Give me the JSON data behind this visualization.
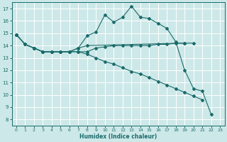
{
  "xlabel": "Humidex (Indice chaleur)",
  "background_color": "#cde8e8",
  "grid_color": "#b0d8d8",
  "line_color": "#1a6b6b",
  "xlim": [
    -0.5,
    23.5
  ],
  "ylim": [
    7.5,
    17.5
  ],
  "yticks": [
    8,
    9,
    10,
    11,
    12,
    13,
    14,
    15,
    16,
    17
  ],
  "xticks": [
    0,
    1,
    2,
    3,
    4,
    5,
    6,
    7,
    8,
    9,
    10,
    11,
    12,
    13,
    14,
    15,
    16,
    17,
    18,
    19,
    20,
    21,
    22,
    23
  ],
  "series": [
    {
      "x": [
        0,
        1,
        2,
        3,
        4,
        5,
        6,
        7,
        8,
        9,
        10,
        11,
        12,
        13,
        14,
        15,
        16,
        17,
        18,
        19,
        20,
        21,
        22
      ],
      "y": [
        14.9,
        14.1,
        13.8,
        13.5,
        13.5,
        13.5,
        13.5,
        13.8,
        14.8,
        15.1,
        16.5,
        15.9,
        16.3,
        17.2,
        16.3,
        16.2,
        15.8,
        15.4,
        14.3,
        12.0,
        10.5,
        10.3,
        8.4
      ]
    },
    {
      "x": [
        0,
        1,
        2,
        3,
        4,
        5,
        6,
        7,
        8,
        19
      ],
      "y": [
        14.9,
        14.1,
        13.8,
        13.5,
        13.5,
        13.5,
        13.5,
        13.8,
        14.0,
        14.2
      ]
    },
    {
      "x": [
        0,
        1,
        2,
        3,
        4,
        5,
        6,
        7,
        8,
        9,
        10,
        11,
        12,
        13,
        14,
        15,
        16,
        17,
        18,
        19,
        20,
        21
      ],
      "y": [
        14.9,
        14.1,
        13.8,
        13.5,
        13.5,
        13.5,
        13.5,
        13.5,
        13.3,
        13.0,
        12.7,
        12.5,
        12.2,
        11.9,
        11.7,
        11.4,
        11.1,
        10.8,
        10.5,
        10.2,
        9.9,
        9.6
      ]
    },
    {
      "x": [
        0,
        1,
        2,
        3,
        4,
        5,
        6,
        7,
        8,
        9,
        10,
        11,
        12,
        13,
        14,
        15,
        16,
        17,
        18,
        19,
        20
      ],
      "y": [
        14.9,
        14.1,
        13.8,
        13.5,
        13.5,
        13.5,
        13.5,
        13.5,
        13.5,
        13.8,
        13.9,
        14.0,
        14.0,
        14.0,
        14.0,
        14.0,
        14.1,
        14.1,
        14.2,
        14.2,
        14.2
      ]
    }
  ]
}
